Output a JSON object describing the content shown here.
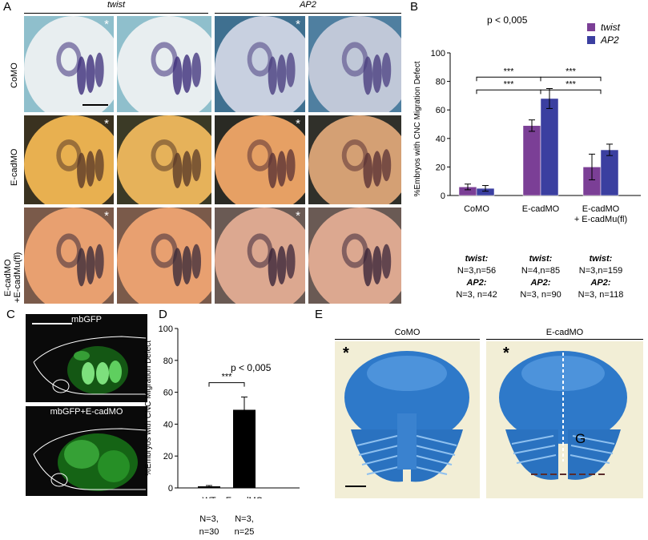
{
  "panelA": {
    "label": "A",
    "col_twist": "twist",
    "col_ap2": "AP2",
    "rows": [
      "CoMO",
      "E-cadMO",
      "E-cadMO\n+ E-cadMu(fl)"
    ],
    "row_line1": [
      "CoMO",
      "E-cadMO",
      "E-cadMO"
    ],
    "row_line2": [
      "",
      "",
      "+E-cadMu(fl)"
    ]
  },
  "panelB": {
    "label": "B",
    "pvalue": "p < 0,005",
    "legend": [
      "twist",
      "AP2"
    ],
    "sig": "***",
    "counts": [
      {
        "l1": "twist:",
        "l2": "N=3,n=56",
        "l3": "AP2:",
        "l4": "N=3, n=42"
      },
      {
        "l1": "twist:",
        "l2": "N=4,n=85",
        "l3": "AP2:",
        "l4": "N=3, n=90"
      },
      {
        "l1": "twist:",
        "l2": "N=3,n=159",
        "l3": "AP2:",
        "l4": "N=3, n=118"
      }
    ]
  },
  "panelC": {
    "label": "C",
    "top": "mbGFP",
    "bottom": "mbGFP+E-cadMO"
  },
  "panelD": {
    "label": "D",
    "pvalue": "p < 0,005",
    "sig": "***",
    "counts": [
      {
        "l1": "N=3,",
        "l2": "n=30"
      },
      {
        "l1": "N=3,",
        "l2": "n=25"
      }
    ]
  },
  "panelE": {
    "label": "E",
    "left": "CoMO",
    "right": "E-cadMO",
    "star": "*",
    "g": "G"
  },
  "colors": {
    "twist": "#7b3f96",
    "ap2": "#3b3fa0",
    "black": "#000000"
  },
  "chart_data": [
    {
      "type": "bar",
      "categories": [
        "CoMO",
        "E-cadMO",
        "E-cadMO\n+ E-cadMu(fl)"
      ],
      "ylabel": "%Embryos with CNC Migration Defect",
      "ylim": [
        0,
        100
      ],
      "yticks": [
        0,
        20,
        40,
        60,
        80,
        100
      ],
      "series": [
        {
          "name": "twist",
          "values": [
            6,
            49,
            20
          ],
          "errors": [
            2,
            4,
            9
          ],
          "color": "#7b3f96"
        },
        {
          "name": "AP2",
          "values": [
            5,
            68,
            32
          ],
          "errors": [
            2,
            7,
            4
          ],
          "color": "#3b3fa0"
        }
      ]
    },
    {
      "type": "bar",
      "categories": [
        "WT",
        "E-cadMO"
      ],
      "ylabel": "%Embryos with CNC Migration Defect",
      "ylim": [
        0,
        100
      ],
      "yticks": [
        0,
        20,
        40,
        60,
        80,
        100
      ],
      "series": [
        {
          "values": [
            1,
            49
          ],
          "errors": [
            0.5,
            8
          ],
          "color": "#000000"
        }
      ]
    }
  ]
}
